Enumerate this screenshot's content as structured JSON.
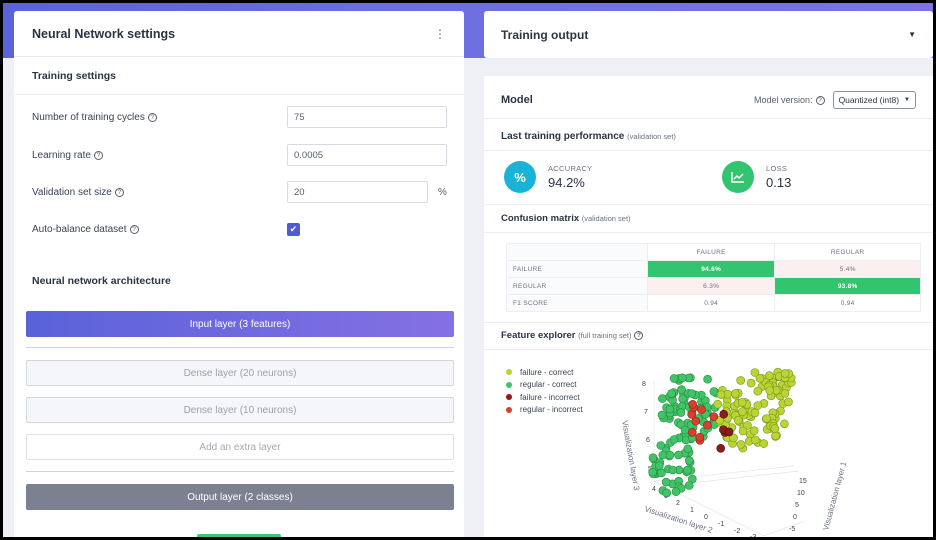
{
  "colors": {
    "header_gradient": "#5a63d8",
    "accent_purple": "#5a62d9",
    "success_green": "#32c46f",
    "teal": "#1ab2d6",
    "output_gray": "#7b8191",
    "failure_correct": "#b9d534",
    "regular_correct": "#3fc466",
    "failure_incorrect": "#8b1c1c",
    "regular_incorrect": "#d83f2c"
  },
  "left": {
    "title": "Neural Network settings",
    "menu_icon": "kebab-menu-icon",
    "training_settings_label": "Training settings",
    "fields": {
      "cycles": {
        "label": "Number of training cycles",
        "value": "75"
      },
      "learning_rate": {
        "label": "Learning rate",
        "value": "0.0005"
      },
      "validation": {
        "label": "Validation set size",
        "value": "20",
        "unit": "%"
      },
      "autobalance": {
        "label": "Auto-balance dataset",
        "checked": true
      }
    },
    "help_glyph": "?",
    "architecture_label": "Neural network architecture",
    "layers": {
      "input": "Input layer (3 features)",
      "dense1": "Dense layer (20 neurons)",
      "dense2": "Dense layer (10 neurons)",
      "add": "Add an extra layer",
      "output": "Output layer (2 classes)"
    }
  },
  "right": {
    "title": "Training output",
    "model_title": "Model",
    "model_version_label": "Model version:",
    "model_version_value": "Quantized (int8)",
    "last_perf_title": "Last training performance",
    "last_perf_note": "(validation set)",
    "accuracy": {
      "label": "ACCURACY",
      "value": "94.2%",
      "icon": "percent-icon",
      "glyph": "%"
    },
    "loss": {
      "label": "LOSS",
      "value": "0.13",
      "icon": "trend-chart-icon"
    },
    "confusion": {
      "title": "Confusion matrix",
      "note": "(validation set)",
      "headers": [
        "",
        "FAILURE",
        "REGULAR"
      ],
      "rows": [
        [
          "FAILURE",
          "94.6%",
          "5.4%"
        ],
        [
          "REGULAR",
          "6.3%",
          "93.8%"
        ],
        [
          "F1 SCORE",
          "0.94",
          "0.94"
        ]
      ]
    },
    "feature_explorer": {
      "title": "Feature explorer",
      "note": "(full training set)",
      "legend": [
        {
          "label": "failure - correct",
          "color": "#b9d534"
        },
        {
          "label": "regular - correct",
          "color": "#3fc466"
        },
        {
          "label": "failure - incorrect",
          "color": "#8b1c1c"
        },
        {
          "label": "regular - incorrect",
          "color": "#d83f2c"
        }
      ],
      "axis_labels": {
        "layer1": "Visualization layer 1",
        "layer2": "Visualization layer 2",
        "layer3": "Visualization layer 3"
      },
      "z_ticks": [
        "8",
        "7",
        "6",
        "5"
      ],
      "x_ticks": [
        "4",
        "3",
        "2",
        "1",
        "0",
        "-1",
        "-2",
        "-3"
      ],
      "y_ticks": [
        "15",
        "10",
        "5",
        "0",
        "-5"
      ]
    }
  }
}
